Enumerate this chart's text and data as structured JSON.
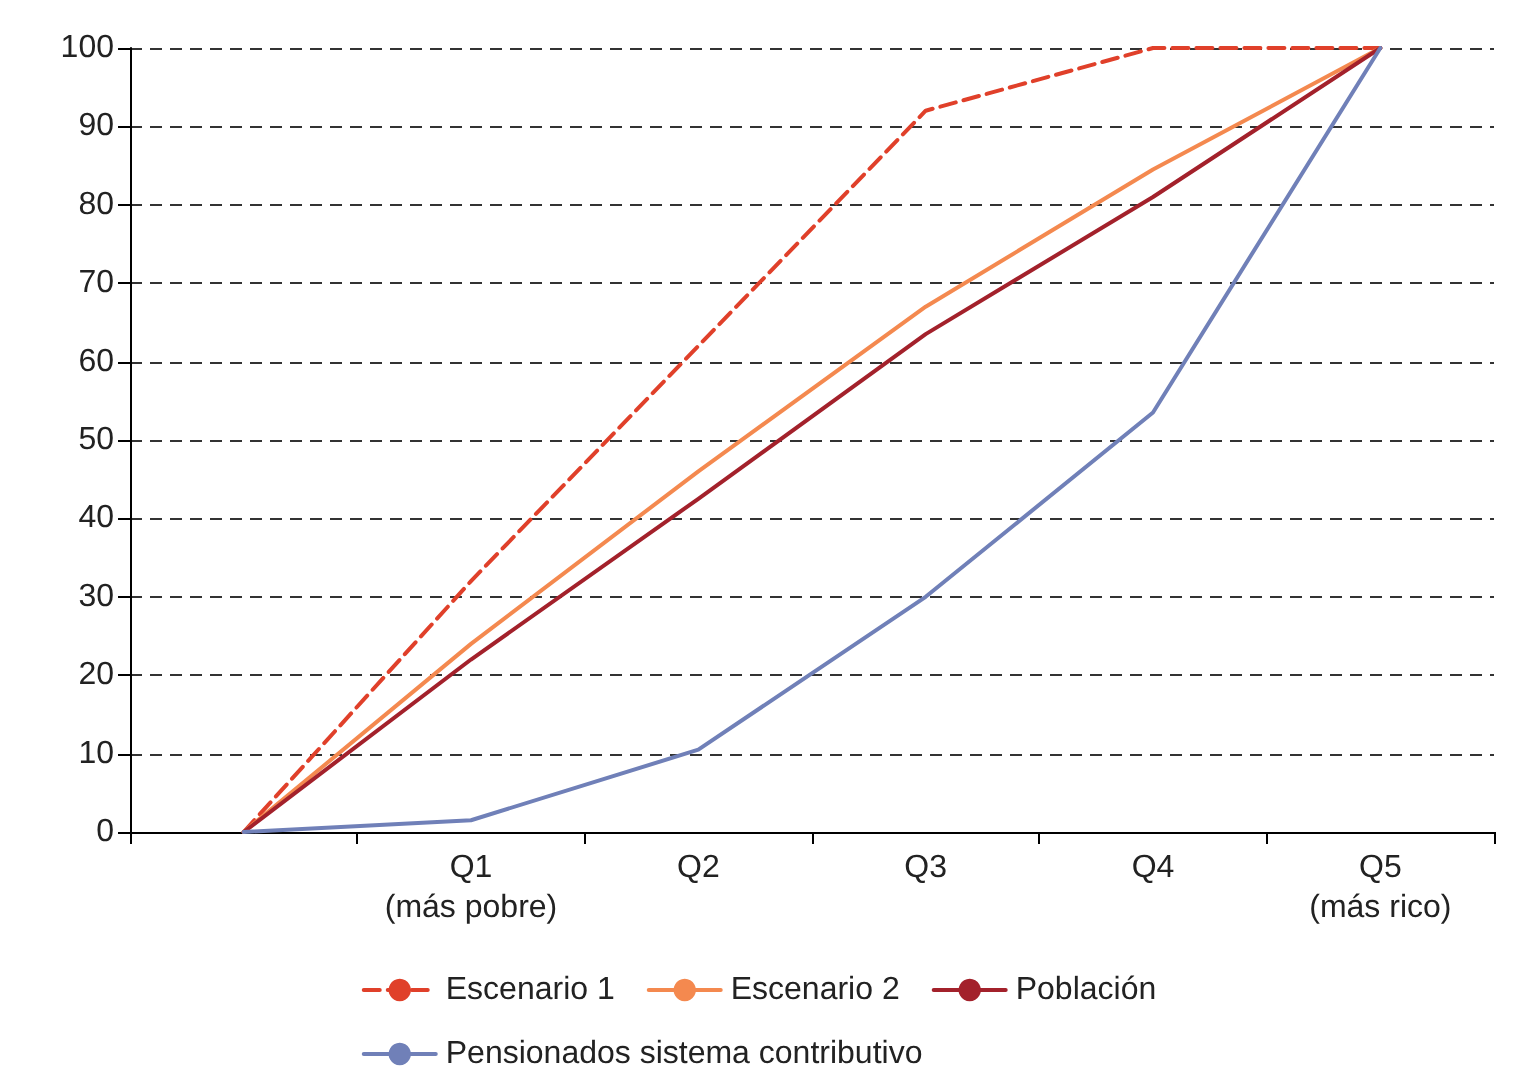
{
  "chart_data": {
    "type": "line",
    "categories": [
      null,
      "Q1\n(más pobre)",
      "Q2",
      "Q3",
      "Q4",
      "Q5\n(más rico)"
    ],
    "ylim": [
      0,
      100
    ],
    "yticks": [
      0,
      10,
      20,
      30,
      40,
      50,
      60,
      70,
      80,
      90,
      100
    ],
    "grid": "y",
    "legend": "bottom",
    "marker": "none",
    "series": [
      {
        "name": "Escenario 1",
        "color": "#e0402a",
        "line_style": "dashed",
        "values": [
          0,
          32,
          62,
          92,
          100,
          100
        ]
      },
      {
        "name": "Escenario 2",
        "color": "#f4894f",
        "line_style": "solid",
        "values": [
          0,
          24,
          46,
          67,
          84.5,
          100
        ]
      },
      {
        "name": "Población",
        "color": "#a3212b",
        "line_style": "solid",
        "values": [
          0,
          22,
          42.5,
          63.5,
          81,
          100
        ]
      },
      {
        "name": "Pensionados sistema contributivo",
        "color": "#7080b8",
        "line_style": "solid",
        "values": [
          0,
          1.5,
          10.5,
          30,
          53.5,
          100
        ]
      }
    ]
  }
}
